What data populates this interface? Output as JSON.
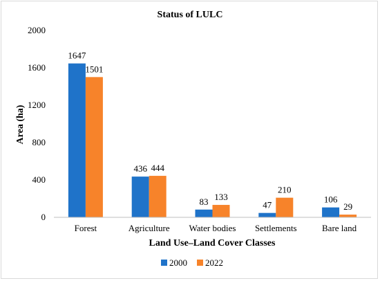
{
  "chart_data": {
    "type": "bar",
    "title": "Status of LULC",
    "xlabel": "Land Use–Land Cover Classes",
    "ylabel": "Area (ha)",
    "ylim": [
      0,
      2000
    ],
    "yticks": [
      0,
      400,
      800,
      1200,
      1600,
      2000
    ],
    "categories": [
      "Forest",
      "Agriculture",
      "Water bodies",
      "Settlements",
      "Bare land"
    ],
    "series": [
      {
        "name": "2000",
        "color": "#1f73c9",
        "values": [
          1647,
          436,
          83,
          47,
          106
        ]
      },
      {
        "name": "2022",
        "color": "#f7832a",
        "values": [
          1501,
          444,
          133,
          210,
          29
        ]
      }
    ],
    "grid": false,
    "legend": "bottom"
  }
}
